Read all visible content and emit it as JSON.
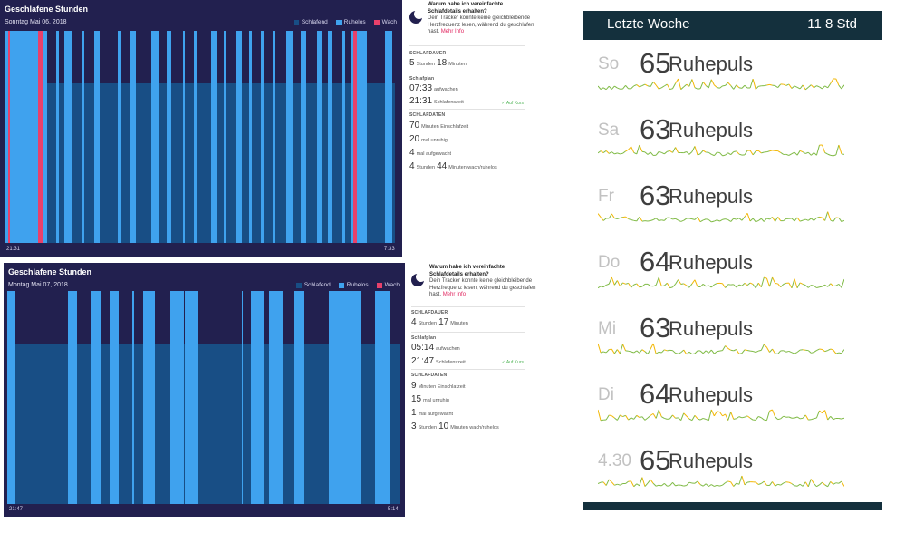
{
  "colors": {
    "panel_bg": "#22204f",
    "asleep": "#184e85",
    "restless": "#3fa2ee",
    "awake": "#e8416b",
    "onplan": "#53b65a",
    "link": "#e0245e",
    "hr_header": "#14303d",
    "hr_line_green": "#7fba45",
    "hr_line_yellow": "#f2b705"
  },
  "sleep_panels": [
    {
      "title": "Geschlafene Stunden",
      "date": "Sonntag Mai 06, 2018",
      "legend": {
        "asleep": "Schlafend",
        "restless": "Ruhelos",
        "awake": "Wach"
      },
      "start_time": "21:31",
      "end_time": "7:33",
      "restless_segments": [
        [
          0.0,
          0.008
        ],
        [
          0.012,
          0.084
        ],
        [
          0.098,
          0.108
        ],
        [
          0.13,
          0.138
        ],
        [
          0.15,
          0.169
        ],
        [
          0.195,
          0.203
        ],
        [
          0.228,
          0.242
        ],
        [
          0.289,
          0.298
        ],
        [
          0.322,
          0.334
        ],
        [
          0.375,
          0.392
        ],
        [
          0.414,
          0.426
        ],
        [
          0.456,
          0.461
        ],
        [
          0.484,
          0.492
        ],
        [
          0.528,
          0.543
        ],
        [
          0.56,
          0.566
        ],
        [
          0.591,
          0.606
        ],
        [
          0.625,
          0.633
        ],
        [
          0.656,
          0.663
        ],
        [
          0.686,
          0.693
        ],
        [
          0.722,
          0.738
        ],
        [
          0.759,
          0.771
        ],
        [
          0.8,
          0.812
        ],
        [
          0.829,
          0.839
        ],
        [
          0.866,
          0.873
        ],
        [
          0.885,
          0.893
        ],
        [
          0.903,
          0.927
        ],
        [
          0.974,
          0.994
        ]
      ],
      "awake_segments": [
        [
          0.008,
          0.012
        ],
        [
          0.084,
          0.098
        ],
        [
          0.893,
          0.903
        ]
      ],
      "details": {
        "question": "Warum habe ich vereinfachte Schlafdetails erhalten?",
        "body": "Dein Tracker konnte keine gleichbleibende Herzfrequenz lesen, während du geschlafen hast.",
        "link": "Mehr Info",
        "duration_header": "SCHLAFDAUER",
        "duration_hours": "5",
        "duration_hours_unit": "Stunden",
        "duration_minutes": "18",
        "duration_minutes_unit": "Minuten",
        "plan_header": "Schlafplan",
        "wake_time": "07:33",
        "wake_label": "aufwachen",
        "bed_time": "21:31",
        "bed_label": "Schlafenszeit",
        "on_plan": "✓ Auf Kurs",
        "data_header": "SCHLAFDATEN",
        "onset_value": "70",
        "onset_label": "Minuten Einschlafzeit",
        "restless_value": "20",
        "restless_label": "mal unruhig",
        "awake_value": "4",
        "awake_label": "mal aufgewacht",
        "restless_time_hours": "4",
        "restless_time_hours_unit": "Stunden",
        "restless_time_minutes": "44",
        "restless_time_minutes_unit": "Minuten wach/ruhelos"
      }
    },
    {
      "title": "Geschlafene Stunden",
      "date": "Montag Mai 07, 2018",
      "legend": {
        "asleep": "Schlafend",
        "restless": "Ruhelos",
        "awake": "Wach"
      },
      "start_time": "21:47",
      "end_time": "5:14",
      "restless_segments": [
        [
          0.0,
          0.021
        ],
        [
          0.155,
          0.178
        ],
        [
          0.214,
          0.237
        ],
        [
          0.26,
          0.283
        ],
        [
          0.317,
          0.323
        ],
        [
          0.345,
          0.375
        ],
        [
          0.415,
          0.449
        ],
        [
          0.451,
          0.486
        ],
        [
          0.596,
          0.599
        ],
        [
          0.619,
          0.653
        ],
        [
          0.667,
          0.701
        ],
        [
          0.73,
          0.755
        ],
        [
          0.819,
          0.899
        ],
        [
          0.935,
          0.973
        ]
      ],
      "awake_segments": [],
      "details": {
        "question": "Warum habe ich vereinfachte Schlafdetails erhalten?",
        "body": "Dein Tracker konnte keine gleichbleibende Herzfrequenz lesen, während du geschlafen hast.",
        "link": "Mehr Info",
        "duration_header": "SCHLAFDAUER",
        "duration_hours": "4",
        "duration_hours_unit": "Stunden",
        "duration_minutes": "17",
        "duration_minutes_unit": "Minuten",
        "plan_header": "Schlafplan",
        "wake_time": "05:14",
        "wake_label": "aufwachen",
        "bed_time": "21:47",
        "bed_label": "Schlafenszeit",
        "on_plan": "✓ Auf Kurs",
        "data_header": "SCHLAFDATEN",
        "onset_value": "9",
        "onset_label": "Minuten Einschlafzeit",
        "restless_value": "15",
        "restless_label": "mal unruhig",
        "awake_value": "1",
        "awake_label": "mal aufgewacht",
        "restless_time_hours": "3",
        "restless_time_hours_unit": "Stunden",
        "restless_time_minutes": "10",
        "restless_time_minutes_unit": "Minuten wach/ruhelos"
      }
    }
  ],
  "resting_hr": {
    "header_left": "Letzte Woche",
    "header_right": "11 8 Std",
    "unit": "Ruhepuls",
    "days": [
      {
        "label": "So",
        "value": "65",
        "seed": 3
      },
      {
        "label": "Sa",
        "value": "63",
        "seed": 7
      },
      {
        "label": "Fr",
        "value": "63",
        "seed": 11
      },
      {
        "label": "Do",
        "value": "64",
        "seed": 19
      },
      {
        "label": "Mi",
        "value": "63",
        "seed": 23
      },
      {
        "label": "Di",
        "value": "64",
        "seed": 29
      },
      {
        "label": "4.30",
        "value": "65",
        "seed": 31
      }
    ]
  }
}
